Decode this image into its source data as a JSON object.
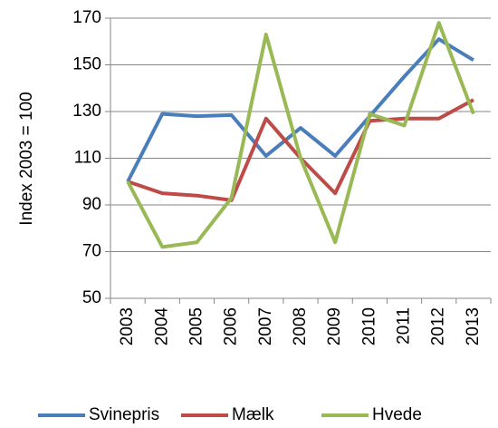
{
  "chart_data": {
    "type": "line",
    "y_label": "Index 2003 = 100",
    "categories": [
      "2003",
      "2004",
      "2005",
      "2006",
      "2007",
      "2008",
      "2009",
      "2010",
      "2011",
      "2012",
      "2013"
    ],
    "series": [
      {
        "name": "Svinepris",
        "color": "#4a7ebb",
        "values": [
          100,
          129,
          128,
          128.5,
          111,
          123,
          111,
          128,
          145,
          161,
          152
        ]
      },
      {
        "name": "Mælk",
        "color": "#be4b48",
        "values": [
          100,
          95,
          94,
          92,
          127,
          110,
          95,
          126,
          127,
          127,
          135
        ]
      },
      {
        "name": "Hvede",
        "color": "#98b954",
        "values": [
          100,
          72,
          74,
          93,
          163,
          110,
          74,
          129,
          124,
          168,
          129
        ]
      }
    ],
    "ylim": [
      50,
      170
    ],
    "yticks": [
      50,
      70,
      90,
      110,
      130,
      150,
      170
    ],
    "grid": true,
    "legend": "bottom"
  }
}
